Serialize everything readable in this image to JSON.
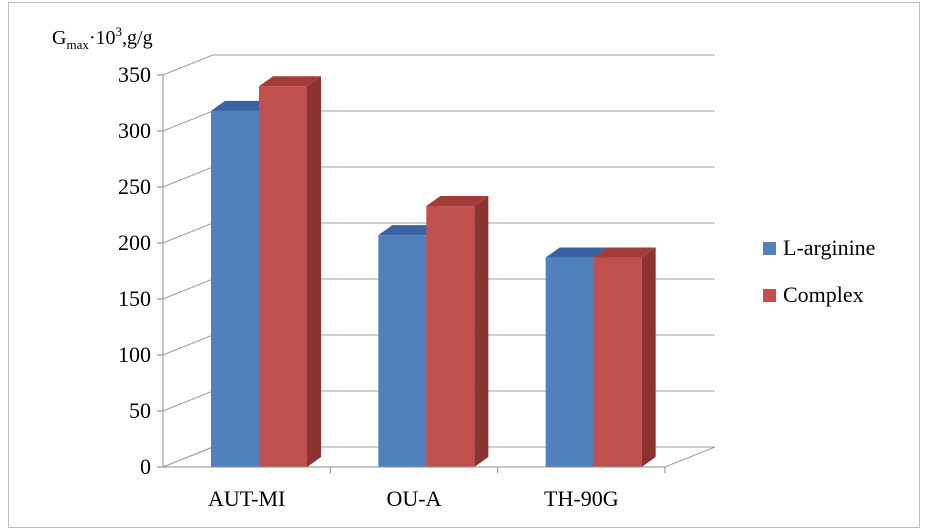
{
  "chart_data": {
    "type": "bar",
    "three_d": true,
    "ylabel": {
      "base": "G",
      "subscript": "max",
      "middle": "·10",
      "superscript": "3",
      "suffix": ",g/g"
    },
    "categories": [
      "AUT-MI",
      "OU-A",
      "TH-90G"
    ],
    "series": [
      {
        "name": "L-arginine",
        "values": [
          318,
          207,
          187
        ],
        "color": "#4f81bd",
        "side_color": "#385d8a",
        "top_color": "#3a62a0"
      },
      {
        "name": "Complex",
        "values": [
          340,
          233,
          187
        ],
        "color": "#c0504d",
        "side_color": "#8c3230",
        "top_color": "#a33c39"
      }
    ],
    "ylim": [
      0,
      350
    ],
    "yticks": [
      0,
      50,
      100,
      150,
      200,
      250,
      300,
      350
    ],
    "grid": true,
    "legend": "right"
  }
}
